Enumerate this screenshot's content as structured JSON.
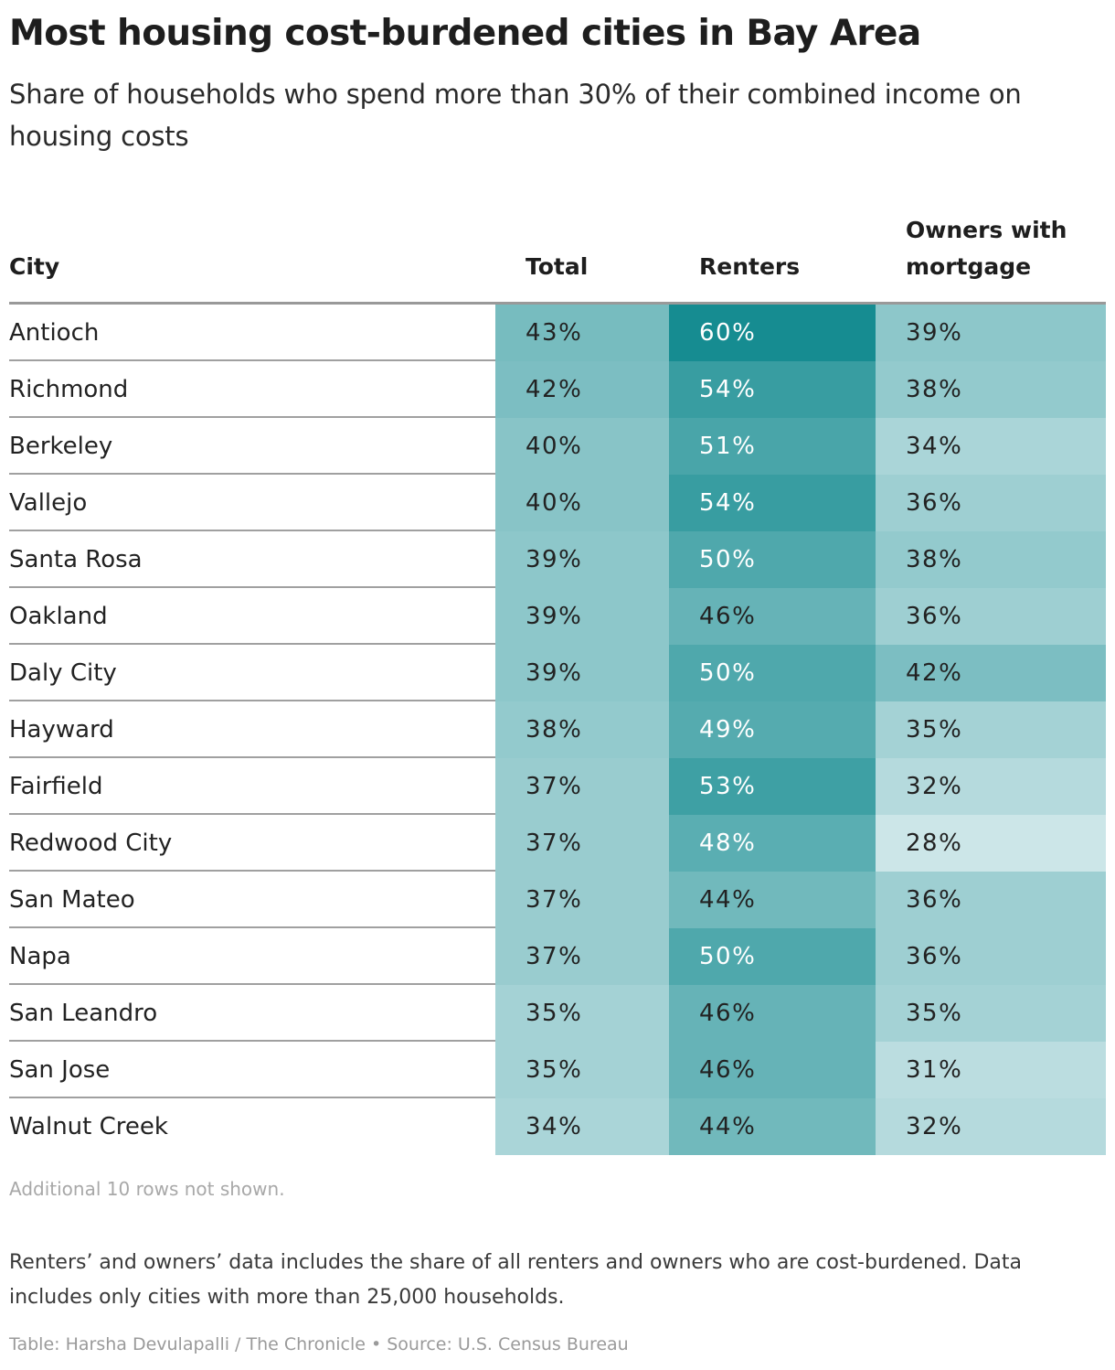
{
  "title": "Most housing cost-burdened cities in Bay Area",
  "subtitle": "Share of households who spend more than 30% of their combined income on housing costs",
  "colors": {
    "scale_low": "#ddeef0",
    "scale_high": "#168c91",
    "text_dark": "#222222",
    "text_light": "#ffffff"
  },
  "chart_data": {
    "type": "table",
    "title": "Most housing cost-burdened cities in Bay Area",
    "subtitle": "Share of households who spend more than 30% of their combined income on housing costs",
    "columns": [
      "City",
      "Total",
      "Renters",
      "Owners with mortgage"
    ],
    "unit": "%",
    "rows": [
      {
        "city": "Antioch",
        "total": 43,
        "renters": 60,
        "owners": 39
      },
      {
        "city": "Richmond",
        "total": 42,
        "renters": 54,
        "owners": 38
      },
      {
        "city": "Berkeley",
        "total": 40,
        "renters": 51,
        "owners": 34
      },
      {
        "city": "Vallejo",
        "total": 40,
        "renters": 54,
        "owners": 36
      },
      {
        "city": "Santa Rosa",
        "total": 39,
        "renters": 50,
        "owners": 38
      },
      {
        "city": "Oakland",
        "total": 39,
        "renters": 46,
        "owners": 36
      },
      {
        "city": "Daly City",
        "total": 39,
        "renters": 50,
        "owners": 42
      },
      {
        "city": "Hayward",
        "total": 38,
        "renters": 49,
        "owners": 35
      },
      {
        "city": "Fairfield",
        "total": 37,
        "renters": 53,
        "owners": 32
      },
      {
        "city": "Redwood City",
        "total": 37,
        "renters": 48,
        "owners": 28
      },
      {
        "city": "San Mateo",
        "total": 37,
        "renters": 44,
        "owners": 36
      },
      {
        "city": "Napa",
        "total": 37,
        "renters": 50,
        "owners": 36
      },
      {
        "city": "San Leandro",
        "total": 35,
        "renters": 46,
        "owners": 35
      },
      {
        "city": "San Jose",
        "total": 35,
        "renters": 46,
        "owners": 31
      },
      {
        "city": "Walnut Creek",
        "total": 34,
        "renters": 44,
        "owners": 32
      }
    ]
  },
  "note": "Additional 10 rows not shown.",
  "footnote": "Renters’ and owners’ data includes the share of all renters and owners who are cost-burdened. Data includes only cities with more than 25,000 households.",
  "credit": "Table: Harsha Devulapalli / The Chronicle • Source: U.S. Census Bureau"
}
